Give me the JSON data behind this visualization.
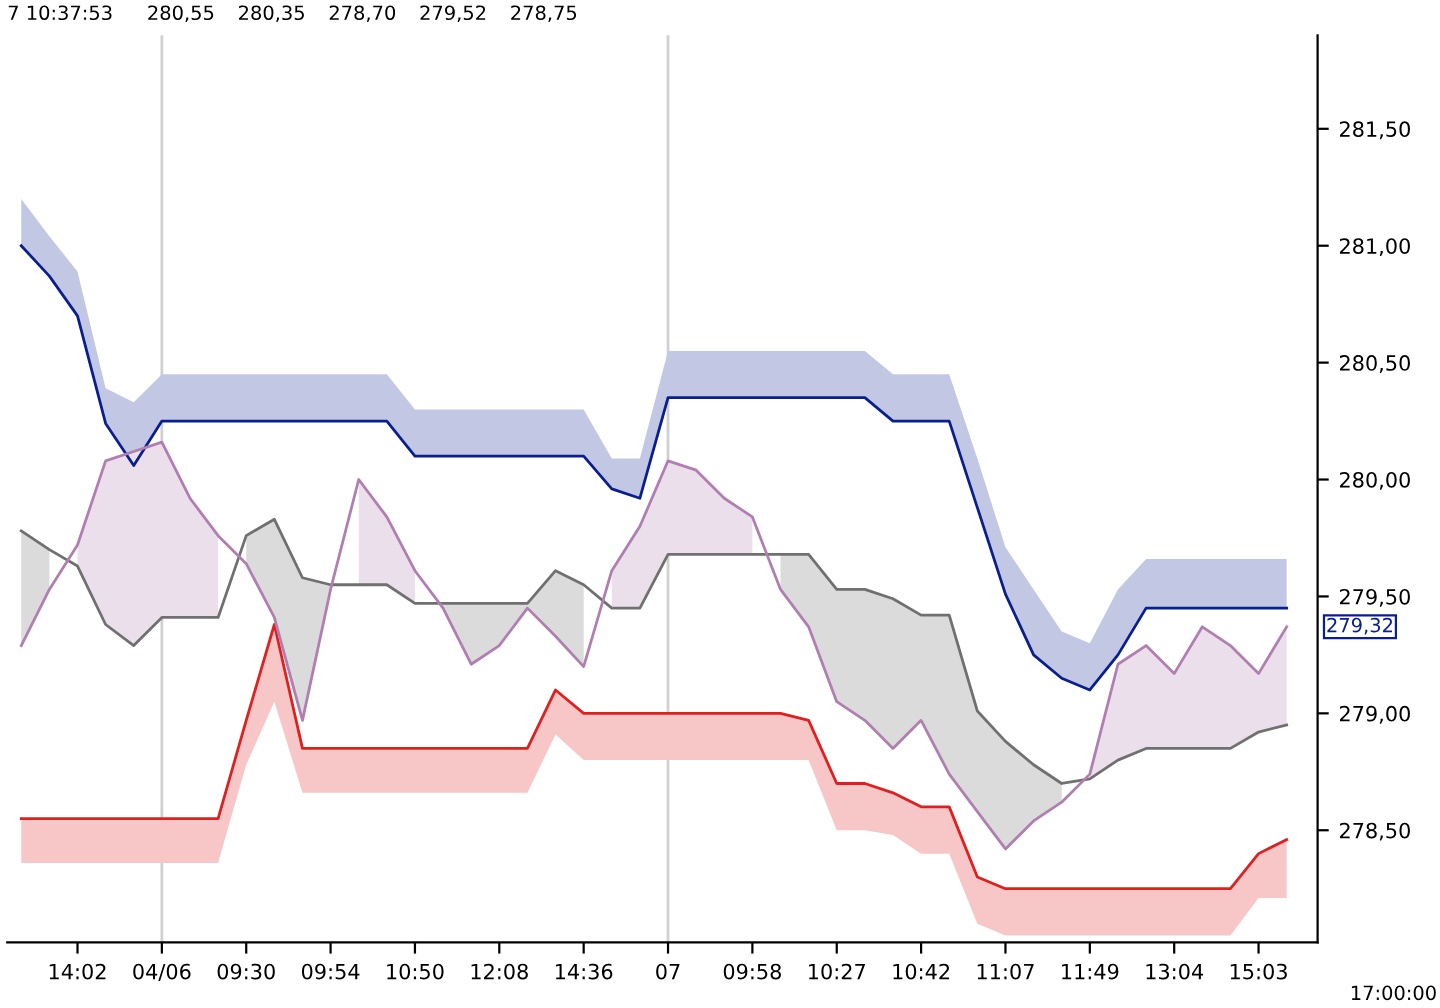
{
  "chart_data": {
    "type": "line",
    "categories": [
      null,
      null,
      "14:02",
      null,
      null,
      "04/06",
      null,
      null,
      "09:30",
      null,
      null,
      "09:54",
      null,
      null,
      "10:50",
      null,
      null,
      "12:08",
      null,
      null,
      "14:36",
      null,
      null,
      "07",
      null,
      null,
      "09:58",
      null,
      null,
      "10:27",
      null,
      null,
      "10:42",
      null,
      null,
      "11:07",
      null,
      null,
      "11:49",
      null,
      null,
      "13:04",
      null,
      null,
      "15:03",
      null
    ],
    "series": [
      {
        "color": "#0a1f8f",
        "values": [
          281.0,
          280.87,
          280.7,
          280.24,
          280.06,
          280.25,
          280.25,
          280.25,
          280.25,
          280.25,
          280.25,
          280.25,
          280.25,
          280.25,
          280.1,
          280.1,
          280.1,
          280.1,
          280.1,
          280.1,
          280.1,
          279.96,
          279.92,
          280.35,
          280.35,
          280.35,
          280.35,
          280.35,
          280.35,
          280.35,
          280.35,
          280.25,
          280.25,
          280.25,
          279.88,
          279.51,
          279.25,
          279.15,
          279.1,
          279.25,
          279.45,
          279.45,
          279.45,
          279.45,
          279.45,
          279.45
        ],
        "lower": [
          281.0,
          280.87,
          280.7,
          280.24,
          280.06,
          280.25,
          280.25,
          280.25,
          280.25,
          280.25,
          280.25,
          280.25,
          280.25,
          280.25,
          280.1,
          280.1,
          280.1,
          280.1,
          280.1,
          280.1,
          280.1,
          279.96,
          279.92,
          280.35,
          280.35,
          280.35,
          280.35,
          280.35,
          280.35,
          280.35,
          280.35,
          280.25,
          280.25,
          280.25,
          279.88,
          279.51,
          279.25,
          279.15,
          279.1,
          279.25,
          279.45,
          279.45,
          279.45,
          279.45,
          279.45,
          279.45
        ],
        "upper": [
          281.2,
          281.04,
          280.89,
          280.39,
          280.33,
          280.45,
          280.45,
          280.45,
          280.45,
          280.45,
          280.45,
          280.45,
          280.45,
          280.45,
          280.3,
          280.3,
          280.3,
          280.3,
          280.3,
          280.3,
          280.3,
          280.09,
          280.09,
          280.55,
          280.55,
          280.55,
          280.55,
          280.55,
          280.55,
          280.55,
          280.55,
          280.45,
          280.45,
          280.45,
          280.09,
          279.71,
          279.53,
          279.35,
          279.3,
          279.53,
          279.66,
          279.66,
          279.66,
          279.66,
          279.66,
          279.66
        ]
      },
      {
        "color": "#e02020",
        "values": [
          278.55,
          278.55,
          278.55,
          278.55,
          278.55,
          278.55,
          278.55,
          278.55,
          278.97,
          279.38,
          278.85,
          278.85,
          278.85,
          278.85,
          278.85,
          278.85,
          278.85,
          278.85,
          278.85,
          279.1,
          279.0,
          279.0,
          279.0,
          279.0,
          279.0,
          279.0,
          279.0,
          279.0,
          278.97,
          278.7,
          278.7,
          278.66,
          278.6,
          278.6,
          278.3,
          278.25,
          278.25,
          278.25,
          278.25,
          278.25,
          278.25,
          278.25,
          278.25,
          278.25,
          278.4,
          278.46
        ],
        "lower": [
          278.36,
          278.36,
          278.36,
          278.36,
          278.36,
          278.36,
          278.36,
          278.36,
          278.78,
          279.05,
          278.66,
          278.66,
          278.66,
          278.66,
          278.66,
          278.66,
          278.66,
          278.66,
          278.66,
          278.91,
          278.8,
          278.8,
          278.8,
          278.8,
          278.8,
          278.8,
          278.8,
          278.8,
          278.8,
          278.5,
          278.5,
          278.48,
          278.4,
          278.4,
          278.1,
          278.05,
          278.05,
          278.05,
          278.05,
          278.05,
          278.05,
          278.05,
          278.05,
          278.05,
          278.21,
          278.21
        ],
        "upper": [
          278.55,
          278.55,
          278.55,
          278.55,
          278.55,
          278.55,
          278.55,
          278.55,
          278.97,
          279.38,
          278.85,
          278.85,
          278.85,
          278.85,
          278.85,
          278.85,
          278.85,
          278.85,
          278.85,
          279.1,
          279.0,
          279.0,
          279.0,
          279.0,
          279.0,
          279.0,
          279.0,
          279.0,
          278.97,
          278.7,
          278.7,
          278.66,
          278.6,
          278.6,
          278.3,
          278.25,
          278.25,
          278.25,
          278.25,
          278.25,
          278.25,
          278.25,
          278.25,
          278.25,
          278.4,
          278.46
        ]
      },
      {
        "color": "#707070",
        "values": [
          279.78,
          279.7,
          279.63,
          279.38,
          279.29,
          279.41,
          279.41,
          279.41,
          279.76,
          279.83,
          279.58,
          279.55,
          279.55,
          279.55,
          279.47,
          279.47,
          279.47,
          279.47,
          279.47,
          279.61,
          279.55,
          279.45,
          279.45,
          279.68,
          279.68,
          279.68,
          279.68,
          279.68,
          279.68,
          279.53,
          279.53,
          279.49,
          279.42,
          279.42,
          279.01,
          278.88,
          278.78,
          278.7,
          278.72,
          278.8,
          278.85,
          278.85,
          278.85,
          278.85,
          278.92,
          278.95
        ],
        "lower": [
          279.29,
          279.53,
          null,
          null,
          null,
          null,
          null,
          null,
          279.64,
          279.41,
          278.97,
          279.53,
          null,
          null,
          null,
          279.45,
          279.21,
          279.29,
          279.45,
          279.33,
          279.2,
          null,
          null,
          null,
          null,
          null,
          null,
          279.53,
          279.37,
          279.05,
          278.97,
          278.85,
          278.97,
          278.74,
          278.58,
          278.42,
          278.54,
          278.62,
          null,
          null,
          null,
          null,
          null,
          null,
          null,
          null
        ],
        "upper": [
          279.78,
          279.7,
          null,
          null,
          null,
          null,
          null,
          null,
          279.76,
          279.83,
          279.58,
          279.55,
          null,
          null,
          null,
          279.47,
          279.47,
          279.47,
          279.47,
          279.61,
          279.55,
          null,
          null,
          null,
          null,
          null,
          null,
          279.68,
          279.68,
          279.53,
          279.53,
          279.49,
          279.42,
          279.42,
          279.01,
          278.88,
          278.78,
          278.7,
          null,
          null,
          null,
          null,
          null,
          null,
          null,
          null
        ]
      },
      {
        "color": "#b07fb0",
        "values": [
          279.29,
          279.53,
          279.72,
          280.08,
          280.12,
          280.16,
          279.92,
          279.76,
          279.64,
          279.41,
          278.97,
          279.53,
          280.0,
          279.84,
          279.61,
          279.45,
          279.21,
          279.29,
          279.45,
          279.33,
          279.2,
          279.61,
          279.8,
          280.08,
          280.04,
          279.92,
          279.84,
          279.53,
          279.37,
          279.05,
          278.97,
          278.85,
          278.97,
          278.74,
          278.58,
          278.42,
          278.54,
          278.62,
          278.74,
          279.21,
          279.29,
          279.17,
          279.37,
          279.29,
          279.17,
          279.37
        ],
        "lower": [
          null,
          null,
          279.63,
          279.38,
          279.29,
          279.41,
          279.41,
          279.41,
          null,
          null,
          null,
          null,
          279.55,
          279.55,
          279.47,
          null,
          null,
          null,
          null,
          null,
          null,
          279.45,
          279.45,
          279.68,
          279.68,
          279.68,
          279.68,
          null,
          null,
          null,
          null,
          null,
          null,
          null,
          null,
          null,
          null,
          null,
          278.72,
          278.8,
          278.85,
          278.85,
          278.85,
          278.85,
          278.92,
          278.95
        ],
        "upper": [
          null,
          null,
          279.72,
          280.08,
          280.12,
          280.16,
          279.92,
          279.76,
          null,
          null,
          null,
          null,
          280.0,
          279.84,
          279.61,
          null,
          null,
          null,
          null,
          null,
          null,
          279.61,
          279.8,
          280.08,
          280.04,
          279.92,
          279.84,
          null,
          null,
          null,
          null,
          null,
          null,
          null,
          null,
          null,
          null,
          null,
          278.74,
          279.21,
          279.29,
          279.17,
          279.37,
          279.29,
          279.17,
          279.37
        ]
      }
    ],
    "ylim": [
      278.02,
      281.9
    ],
    "yticks": [
      {
        "value": 278.5,
        "label": "278,50"
      },
      {
        "value": 279.0,
        "label": "279,00"
      },
      {
        "value": 279.5,
        "label": "279,50"
      },
      {
        "value": 280.0,
        "label": "280,00"
      },
      {
        "value": 280.5,
        "label": "280,50"
      },
      {
        "value": 281.0,
        "label": "281,00"
      },
      {
        "value": 281.5,
        "label": "281,50"
      }
    ],
    "ref_lines": [
      {
        "axis": "x",
        "value": "04/06",
        "color": "#d0d0d0"
      },
      {
        "axis": "x",
        "value": "07",
        "color": "#d0d0d0"
      }
    ],
    "annotations": [
      "7 10:37:53",
      "280,55",
      "280,35",
      "278,70",
      "279,52",
      "278,75",
      "279,32",
      "17:00:00"
    ],
    "grid": false,
    "marker": "none",
    "line_style": "solid"
  }
}
